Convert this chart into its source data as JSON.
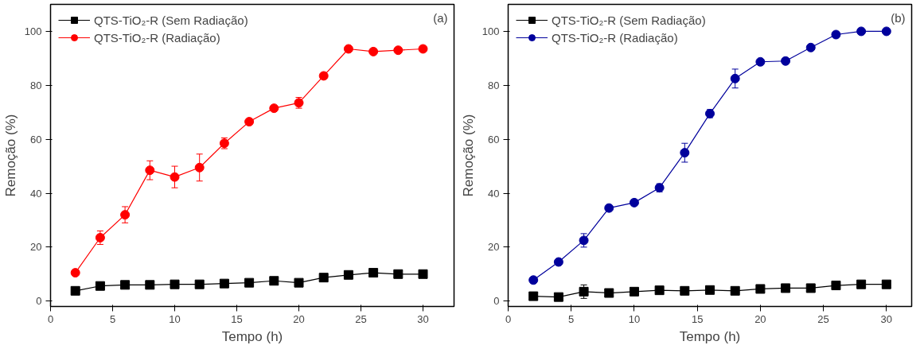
{
  "chart_data": [
    {
      "type": "line",
      "xlabel": "Tempo (h)",
      "ylabel": "Remoção (%)",
      "annotations": [
        "(a)"
      ],
      "x": [
        2,
        4,
        6,
        8,
        10,
        12,
        14,
        16,
        18,
        20,
        22,
        24,
        26,
        28,
        30
      ],
      "xlim": [
        0,
        32.5
      ],
      "ylim": [
        -2,
        110
      ],
      "xticks": [
        0,
        5,
        10,
        15,
        20,
        25,
        30
      ],
      "yticks": [
        0,
        20,
        40,
        60,
        80,
        100
      ],
      "legend": "top left",
      "grid": false,
      "series": [
        {
          "name": "QTS-TiO₂-R (Sem Radiação)",
          "color": "#000000",
          "marker": "square",
          "values": [
            3.8,
            5.6,
            6,
            6,
            6.2,
            6.2,
            6.5,
            6.8,
            7.5,
            6.8,
            8.7,
            9.7,
            10.5,
            10,
            10
          ]
        },
        {
          "name": "QTS-TiO₂-R (Radiação)",
          "color": "#ff0000",
          "marker": "circle",
          "values": [
            10.5,
            23.5,
            32,
            48.5,
            46,
            49.5,
            58.5,
            66.5,
            71.5,
            73.5,
            83.5,
            93.5,
            92.5,
            93,
            93.5
          ],
          "errors": [
            null,
            2.5,
            3,
            3.5,
            4,
            5,
            2,
            null,
            null,
            2,
            null,
            null,
            null,
            null,
            null
          ]
        }
      ]
    },
    {
      "type": "line",
      "xlabel": "Tempo (h)",
      "ylabel": "Remoção (%)",
      "annotations": [
        "(b)"
      ],
      "x": [
        2,
        4,
        6,
        8,
        10,
        12,
        14,
        16,
        18,
        20,
        22,
        24,
        26,
        28,
        30
      ],
      "xlim": [
        0,
        32
      ],
      "ylim": [
        -2,
        110
      ],
      "xticks": [
        0,
        5,
        10,
        15,
        20,
        25,
        30
      ],
      "yticks": [
        0,
        20,
        40,
        60,
        80,
        100
      ],
      "legend": "top left",
      "grid": false,
      "series": [
        {
          "name": "QTS-TiO₂-R (Sem Radiação)",
          "color": "#000000",
          "marker": "square",
          "values": [
            1.8,
            1.5,
            3.5,
            3,
            3.5,
            4,
            3.8,
            4.1,
            3.8,
            4.5,
            4.8,
            4.8,
            5.8,
            6.2,
            6.2
          ],
          "errors": [
            null,
            null,
            2.5,
            null,
            null,
            null,
            null,
            null,
            null,
            null,
            null,
            null,
            null,
            null,
            null
          ]
        },
        {
          "name": "QTS-TiO₂-R (Radiação)",
          "color": "#00009c",
          "marker": "circle",
          "values": [
            7.8,
            14.5,
            22.5,
            34.5,
            36.5,
            42,
            55,
            69.5,
            82.5,
            88.7,
            89,
            94,
            98.8,
            100,
            100
          ],
          "errors": [
            null,
            null,
            2.5,
            null,
            null,
            1.5,
            3.5,
            1.5,
            3.5,
            null,
            1,
            null,
            null,
            null,
            null
          ]
        }
      ]
    }
  ]
}
